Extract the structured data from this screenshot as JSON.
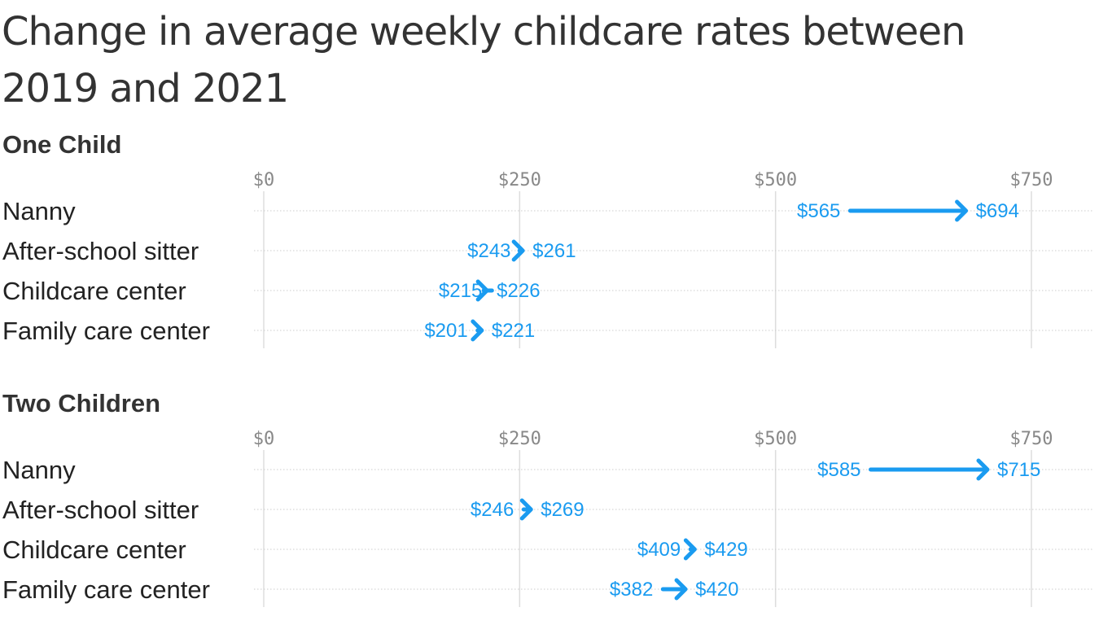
{
  "title": "Change in average weekly childcare rates between 2019 and 2021",
  "colors": {
    "arrow": "#1a9bf0",
    "grid": "#dddddd",
    "text": "#333333",
    "tick": "#888888"
  },
  "chart_data": [
    {
      "type": "dumbbell-arrow",
      "title": "One Child",
      "x_ticks": [
        "$0",
        "$250",
        "$500",
        "$750"
      ],
      "xlim": [
        0,
        750
      ],
      "categories": [
        "Nanny",
        "After-school sitter",
        "Childcare center",
        "Family care center"
      ],
      "series": [
        {
          "name": "2019",
          "values": [
            565,
            243,
            215,
            201
          ]
        },
        {
          "name": "2021",
          "values": [
            694,
            261,
            226,
            221
          ]
        }
      ],
      "value_labels_start": [
        "$565",
        "$243",
        "$215",
        "$201"
      ],
      "value_labels_end": [
        "$694",
        "$261",
        "$226",
        "$221"
      ],
      "grid": true
    },
    {
      "type": "dumbbell-arrow",
      "title": "Two Children",
      "x_ticks": [
        "$0",
        "$250",
        "$500",
        "$750"
      ],
      "xlim": [
        0,
        750
      ],
      "categories": [
        "Nanny",
        "After-school sitter",
        "Childcare center",
        "Family care center"
      ],
      "series": [
        {
          "name": "2019",
          "values": [
            585,
            246,
            409,
            382
          ]
        },
        {
          "name": "2021",
          "values": [
            715,
            269,
            429,
            420
          ]
        }
      ],
      "value_labels_start": [
        "$585",
        "$246",
        "$409",
        "$382"
      ],
      "value_labels_end": [
        "$715",
        "$269",
        "$429",
        "$420"
      ],
      "grid": true
    }
  ]
}
